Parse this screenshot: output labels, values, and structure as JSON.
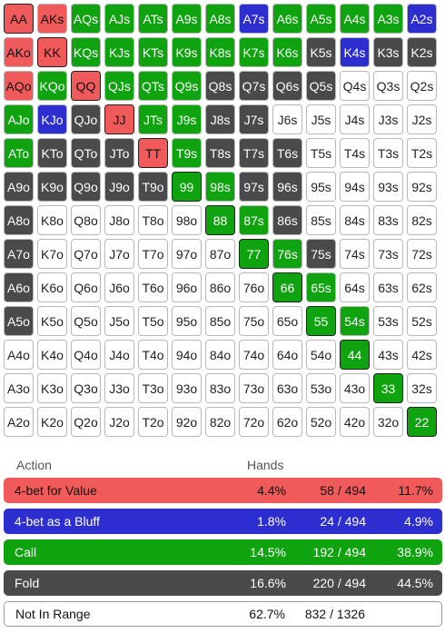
{
  "colors": {
    "value": "#f15a5a",
    "bluff": "#2d2ed0",
    "call": "#0fa30f",
    "fold": "#4a4a4a",
    "not_in_range": "#ffffff"
  },
  "grid": {
    "rows": [
      {
        "hands": [
          "AA",
          "AKs",
          "AQs",
          "AJs",
          "ATs",
          "A9s",
          "A8s",
          "A7s",
          "A6s",
          "A5s",
          "A4s",
          "A3s",
          "A2s"
        ],
        "colors": [
          "R",
          "R",
          "G",
          "G",
          "G",
          "G",
          "G",
          "B",
          "G",
          "G",
          "G",
          "G",
          "B"
        ]
      },
      {
        "hands": [
          "AKo",
          "KK",
          "KQs",
          "KJs",
          "KTs",
          "K9s",
          "K8s",
          "K7s",
          "K6s",
          "K5s",
          "K4s",
          "K3s",
          "K2s"
        ],
        "colors": [
          "R",
          "R",
          "G",
          "G",
          "G",
          "G",
          "G",
          "G",
          "G",
          "D",
          "B",
          "D",
          "D"
        ]
      },
      {
        "hands": [
          "AQo",
          "KQo",
          "QQ",
          "QJs",
          "QTs",
          "Q9s",
          "Q8s",
          "Q7s",
          "Q6s",
          "Q5s",
          "Q4s",
          "Q3s",
          "Q2s"
        ],
        "colors": [
          "R",
          "G",
          "R",
          "G",
          "G",
          "G",
          "D",
          "D",
          "D",
          "D",
          "W",
          "W",
          "W"
        ]
      },
      {
        "hands": [
          "AJo",
          "KJo",
          "QJo",
          "JJ",
          "JTs",
          "J9s",
          "J8s",
          "J7s",
          "J6s",
          "J5s",
          "J4s",
          "J3s",
          "J2s"
        ],
        "colors": [
          "G",
          "B",
          "D",
          "R",
          "G",
          "G",
          "D",
          "D",
          "W",
          "W",
          "W",
          "W",
          "W"
        ]
      },
      {
        "hands": [
          "ATo",
          "KTo",
          "QTo",
          "JTo",
          "TT",
          "T9s",
          "T8s",
          "T7s",
          "T6s",
          "T5s",
          "T4s",
          "T3s",
          "T2s"
        ],
        "colors": [
          "G",
          "D",
          "D",
          "D",
          "R",
          "G",
          "D",
          "D",
          "D",
          "W",
          "W",
          "W",
          "W"
        ]
      },
      {
        "hands": [
          "A9o",
          "K9o",
          "Q9o",
          "J9o",
          "T9o",
          "99",
          "98s",
          "97s",
          "96s",
          "95s",
          "94s",
          "93s",
          "92s"
        ],
        "colors": [
          "D",
          "D",
          "D",
          "D",
          "D",
          "G",
          "G",
          "D",
          "D",
          "W",
          "W",
          "W",
          "W"
        ]
      },
      {
        "hands": [
          "A8o",
          "K8o",
          "Q8o",
          "J8o",
          "T8o",
          "98o",
          "88",
          "87s",
          "86s",
          "85s",
          "84s",
          "83s",
          "82s"
        ],
        "colors": [
          "D",
          "W",
          "W",
          "W",
          "W",
          "W",
          "G",
          "G",
          "D",
          "W",
          "W",
          "W",
          "W"
        ]
      },
      {
        "hands": [
          "A7o",
          "K7o",
          "Q7o",
          "J7o",
          "T7o",
          "97o",
          "87o",
          "77",
          "76s",
          "75s",
          "74s",
          "73s",
          "72s"
        ],
        "colors": [
          "D",
          "W",
          "W",
          "W",
          "W",
          "W",
          "W",
          "G",
          "G",
          "D",
          "W",
          "W",
          "W"
        ]
      },
      {
        "hands": [
          "A6o",
          "K6o",
          "Q6o",
          "J6o",
          "T6o",
          "96o",
          "86o",
          "76o",
          "66",
          "65s",
          "64s",
          "63s",
          "62s"
        ],
        "colors": [
          "D",
          "W",
          "W",
          "W",
          "W",
          "W",
          "W",
          "W",
          "G",
          "G",
          "W",
          "W",
          "W"
        ]
      },
      {
        "hands": [
          "A5o",
          "K5o",
          "Q5o",
          "J5o",
          "T5o",
          "95o",
          "85o",
          "75o",
          "65o",
          "55",
          "54s",
          "53s",
          "52s"
        ],
        "colors": [
          "D",
          "W",
          "W",
          "W",
          "W",
          "W",
          "W",
          "W",
          "W",
          "G",
          "G",
          "W",
          "W"
        ]
      },
      {
        "hands": [
          "A4o",
          "K4o",
          "Q4o",
          "J4o",
          "T4o",
          "94o",
          "84o",
          "74o",
          "64o",
          "54o",
          "44",
          "43s",
          "42s"
        ],
        "colors": [
          "W",
          "W",
          "W",
          "W",
          "W",
          "W",
          "W",
          "W",
          "W",
          "W",
          "G",
          "W",
          "W"
        ]
      },
      {
        "hands": [
          "A3o",
          "K3o",
          "Q3o",
          "J3o",
          "T3o",
          "93o",
          "83o",
          "73o",
          "63o",
          "53o",
          "43o",
          "33",
          "32s"
        ],
        "colors": [
          "W",
          "W",
          "W",
          "W",
          "W",
          "W",
          "W",
          "W",
          "W",
          "W",
          "W",
          "G",
          "W"
        ]
      },
      {
        "hands": [
          "A2o",
          "K2o",
          "Q2o",
          "J2o",
          "T2o",
          "92o",
          "82o",
          "72o",
          "62o",
          "52o",
          "42o",
          "32o",
          "22"
        ],
        "colors": [
          "W",
          "W",
          "W",
          "W",
          "W",
          "W",
          "W",
          "W",
          "W",
          "W",
          "W",
          "W",
          "G"
        ]
      }
    ]
  },
  "legend": {
    "header_action": "Action",
    "header_hands": "Hands",
    "rows": [
      {
        "label": "4-bet for Value",
        "pct": "4.4%",
        "count": "58 / 494",
        "pct2": "11.7%",
        "style": "red"
      },
      {
        "label": "4-bet as a Bluff",
        "pct": "1.8%",
        "count": "24 / 494",
        "pct2": "4.9%",
        "style": "blue"
      },
      {
        "label": "Call",
        "pct": "14.5%",
        "count": "192 / 494",
        "pct2": "38.9%",
        "style": "green"
      },
      {
        "label": "Fold",
        "pct": "16.6%",
        "count": "220 / 494",
        "pct2": "44.5%",
        "style": "dark"
      },
      {
        "label": "Not In Range",
        "pct": "62.7%",
        "count": "832 / 1326",
        "pct2": "",
        "style": "white"
      }
    ]
  }
}
